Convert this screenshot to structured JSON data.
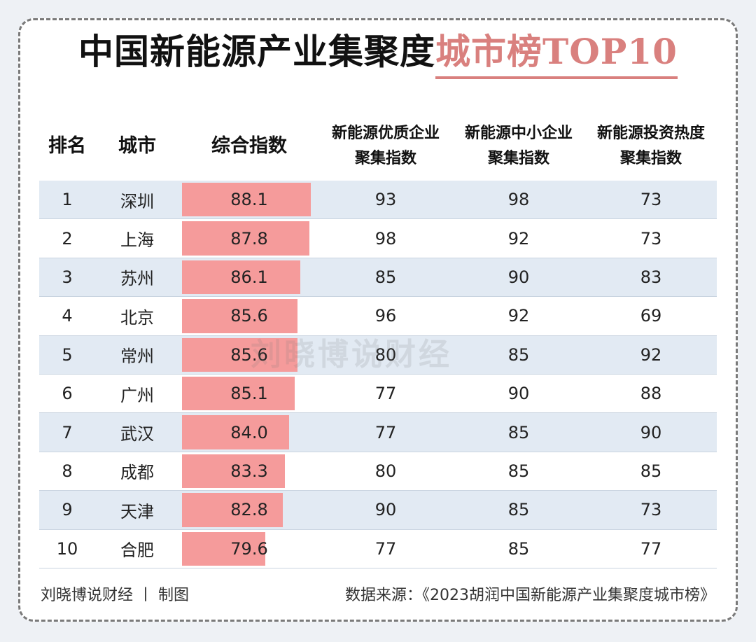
{
  "title": {
    "main": "中国新能源产业集聚度",
    "accent": "城市榜TOP10"
  },
  "watermark": "刘晓博说财经",
  "footer": {
    "left": "刘晓博说财经 丨 制图",
    "right": "数据来源：《2023胡润中国新能源产业集聚度城市榜》"
  },
  "chart_data": {
    "type": "table",
    "columns": [
      {
        "line1": "排名",
        "line2": ""
      },
      {
        "line1": "城市",
        "line2": ""
      },
      {
        "line1": "综合指数",
        "line2": ""
      },
      {
        "line1": "新能源优质企业",
        "line2": "聚集指数"
      },
      {
        "line1": "新能源中小企业",
        "line2": "聚集指数"
      },
      {
        "line1": "新能源投资热度",
        "line2": "聚集指数"
      }
    ],
    "bar_max": 88.1,
    "rows": [
      {
        "rank": "1",
        "city": "深圳",
        "composite": "88.1",
        "quality": "93",
        "sme": "98",
        "investment": "73"
      },
      {
        "rank": "2",
        "city": "上海",
        "composite": "87.8",
        "quality": "98",
        "sme": "92",
        "investment": "73"
      },
      {
        "rank": "3",
        "city": "苏州",
        "composite": "86.1",
        "quality": "85",
        "sme": "90",
        "investment": "83"
      },
      {
        "rank": "4",
        "city": "北京",
        "composite": "85.6",
        "quality": "96",
        "sme": "92",
        "investment": "69"
      },
      {
        "rank": "5",
        "city": "常州",
        "composite": "85.6",
        "quality": "80",
        "sme": "85",
        "investment": "92"
      },
      {
        "rank": "6",
        "city": "广州",
        "composite": "85.1",
        "quality": "77",
        "sme": "90",
        "investment": "88"
      },
      {
        "rank": "7",
        "city": "武汉",
        "composite": "84.0",
        "quality": "77",
        "sme": "85",
        "investment": "90"
      },
      {
        "rank": "8",
        "city": "成都",
        "composite": "83.3",
        "quality": "80",
        "sme": "85",
        "investment": "85"
      },
      {
        "rank": "9",
        "city": "天津",
        "composite": "82.8",
        "quality": "90",
        "sme": "85",
        "investment": "73"
      },
      {
        "rank": "10",
        "city": "合肥",
        "composite": "79.6",
        "quality": "77",
        "sme": "85",
        "investment": "77"
      }
    ]
  }
}
